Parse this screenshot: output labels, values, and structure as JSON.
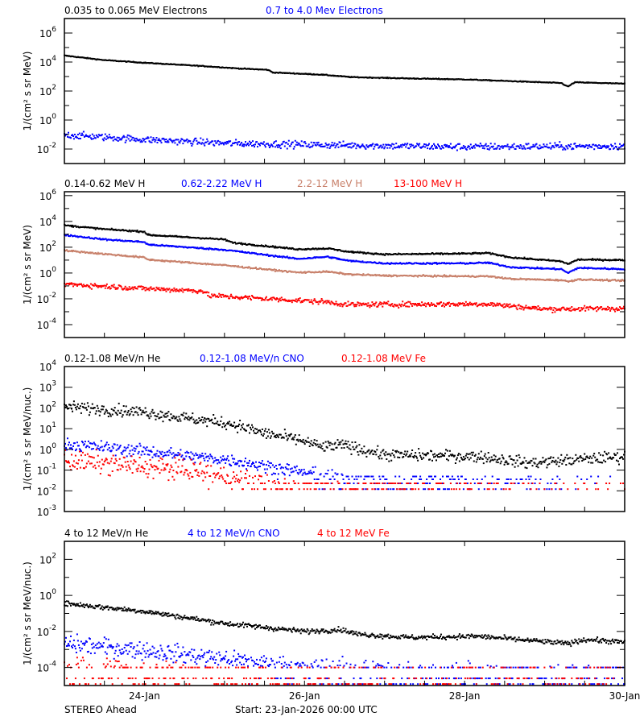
{
  "x_range": [
    "2026-01-23T00:00",
    "2026-01-30T00:00"
  ],
  "x_tick_labels": [
    {
      "date": "2026-01-24T00:00",
      "label": "24-Jan"
    },
    {
      "date": "2026-01-26T00:00",
      "label": "26-Jan"
    },
    {
      "date": "2026-01-28T00:00",
      "label": "28-Jan"
    },
    {
      "date": "2026-01-30T00:00",
      "label": "30-Jan"
    }
  ],
  "footer": {
    "spacecraft": "STEREO Ahead",
    "start": "Start: 23-Jan-2026 00:00 UTC"
  },
  "chart_data": [
    {
      "type": "scatter",
      "yscale": "log",
      "ylabel": "1/(cm² s sr MeV)",
      "ylim": [
        0.001,
        10000000.0
      ],
      "ytick_labels_exp": [
        -2,
        0,
        2,
        4,
        6
      ],
      "series": [
        {
          "name": "0.035 to 0.065 MeV Electrons",
          "color": "#000000",
          "scatter_dex": 0.015,
          "points": [
            [
              "2026-01-23T00:00",
              28000
            ],
            [
              "2026-01-23T12:00",
              13500
            ],
            [
              "2026-01-24T00:00",
              8900
            ],
            [
              "2026-01-24T19:00",
              5000
            ],
            [
              "2026-01-25T05:00",
              3500
            ],
            [
              "2026-01-25T13:00",
              2900
            ],
            [
              "2026-01-25T14:30",
              1900
            ],
            [
              "2026-01-26T05:00",
              1350
            ],
            [
              "2026-01-26T14:00",
              910
            ],
            [
              "2026-01-27T07:00",
              740
            ],
            [
              "2026-01-28T00:00",
              630
            ],
            [
              "2026-01-28T14:00",
              480
            ],
            [
              "2026-01-29T05:00",
              355
            ],
            [
              "2026-01-29T07:00",
              200
            ],
            [
              "2026-01-29T09:00",
              400
            ],
            [
              "2026-01-30T00:00",
              320
            ]
          ]
        },
        {
          "name": "0.7 to 4.0 Mev Electrons",
          "color": "#0000ff",
          "scatter_dex": 0.12,
          "points": [
            [
              "2026-01-23T00:00",
              0.095
            ],
            [
              "2026-01-24T00:00",
              0.045
            ],
            [
              "2026-01-25T00:00",
              0.025
            ],
            [
              "2026-01-26T00:00",
              0.02
            ],
            [
              "2026-01-28T00:00",
              0.014
            ],
            [
              "2026-01-30T00:00",
              0.016
            ]
          ]
        }
      ]
    },
    {
      "type": "scatter",
      "yscale": "log",
      "ylabel": "1/(cm² s sr MeV)",
      "ylim": [
        1e-05,
        2000000.0
      ],
      "ytick_labels_exp": [
        -4,
        -2,
        0,
        2,
        4,
        6
      ],
      "series": [
        {
          "name": "0.14-0.62 MeV H",
          "color": "#000000",
          "scatter_dex": 0.03,
          "points": [
            [
              "2026-01-23T00:00",
              5000
            ],
            [
              "2026-01-23T12:00",
              2500
            ],
            [
              "2026-01-24T00:00",
              1600
            ],
            [
              "2026-01-24T01:00",
              900
            ],
            [
              "2026-01-25T00:00",
              400
            ],
            [
              "2026-01-25T02:30",
              220
            ],
            [
              "2026-01-25T22:00",
              70
            ],
            [
              "2026-01-26T07:00",
              80
            ],
            [
              "2026-01-26T13:00",
              45
            ],
            [
              "2026-01-27T00:00",
              28
            ],
            [
              "2026-01-28T00:00",
              32
            ],
            [
              "2026-01-28T07:00",
              35
            ],
            [
              "2026-01-28T14:00",
              16
            ],
            [
              "2026-01-29T05:00",
              8
            ],
            [
              "2026-01-29T07:00",
              5
            ],
            [
              "2026-01-29T10:00",
              11
            ],
            [
              "2026-01-30T00:00",
              10
            ]
          ]
        },
        {
          "name": "0.62-2.22 MeV H",
          "color": "#0000ff",
          "scatter_dex": 0.03,
          "points": [
            [
              "2026-01-23T00:00",
              900
            ],
            [
              "2026-01-23T12:00",
              400
            ],
            [
              "2026-01-24T00:00",
              250
            ],
            [
              "2026-01-24T01:00",
              160
            ],
            [
              "2026-01-25T00:00",
              63
            ],
            [
              "2026-01-25T22:00",
              12.6
            ],
            [
              "2026-01-26T07:00",
              18
            ],
            [
              "2026-01-26T13:00",
              9
            ],
            [
              "2026-01-27T00:00",
              5.6
            ],
            [
              "2026-01-28T00:00",
              5.6
            ],
            [
              "2026-01-28T07:00",
              6.3
            ],
            [
              "2026-01-28T14:00",
              2.8
            ],
            [
              "2026-01-29T05:00",
              2
            ],
            [
              "2026-01-29T07:00",
              1
            ],
            [
              "2026-01-29T10:00",
              2.5
            ],
            [
              "2026-01-30T00:00",
              2
            ]
          ]
        },
        {
          "name": "2.2-12 MeV H",
          "color": "#c8806a",
          "scatter_dex": 0.03,
          "points": [
            [
              "2026-01-23T00:00",
              56
            ],
            [
              "2026-01-24T00:00",
              16
            ],
            [
              "2026-01-24T01:00",
              11
            ],
            [
              "2026-01-25T00:00",
              4
            ],
            [
              "2026-01-25T22:00",
              1.1
            ],
            [
              "2026-01-26T07:00",
              1.26
            ],
            [
              "2026-01-26T13:00",
              0.8
            ],
            [
              "2026-01-27T00:00",
              0.63
            ],
            [
              "2026-01-28T00:00",
              0.56
            ],
            [
              "2026-01-28T07:00",
              0.56
            ],
            [
              "2026-01-28T14:00",
              0.35
            ],
            [
              "2026-01-29T05:00",
              0.28
            ],
            [
              "2026-01-29T07:00",
              0.22
            ],
            [
              "2026-01-29T10:00",
              0.32
            ],
            [
              "2026-01-30T00:00",
              0.25
            ]
          ]
        },
        {
          "name": "13-100 MeV H",
          "color": "#ff0000",
          "scatter_dex": 0.1,
          "points": [
            [
              "2026-01-23T00:00",
              0.14
            ],
            [
              "2026-01-24T00:00",
              0.063
            ],
            [
              "2026-01-24T18:00",
              0.04
            ],
            [
              "2026-01-24T19:00",
              0.018
            ],
            [
              "2026-01-26T07:00",
              0.0056
            ],
            [
              "2026-01-26T13:00",
              0.0035
            ],
            [
              "2026-01-28T07:00",
              0.004
            ],
            [
              "2026-01-29T00:00",
              0.0016
            ],
            [
              "2026-01-30T00:00",
              0.0018
            ]
          ]
        }
      ]
    },
    {
      "type": "scatter",
      "yscale": "log",
      "ylabel": "1/(cm² s sr MeV/nuc.)",
      "ylim": [
        0.001,
        10000.0
      ],
      "ytick_labels_exp": [
        -3,
        -2,
        -1,
        0,
        1,
        2,
        3,
        4
      ],
      "series": [
        {
          "name": "0.12-1.08 MeV/n He",
          "color": "#000000",
          "scatter_dex": 0.14,
          "points": [
            [
              "2026-01-23T00:00",
              115
            ],
            [
              "2026-01-24T00:00",
              63
            ],
            [
              "2026-01-24T14:00",
              30
            ],
            [
              "2026-01-25T02:00",
              17
            ],
            [
              "2026-01-25T12:00",
              6
            ],
            [
              "2026-01-26T00:00",
              2.5
            ],
            [
              "2026-01-26T05:00",
              1.3
            ],
            [
              "2026-01-26T12:00",
              1.6
            ],
            [
              "2026-01-27T00:00",
              0.54
            ],
            [
              "2026-01-28T05:00",
              0.45
            ],
            [
              "2026-01-28T19:00",
              0.22
            ],
            [
              "2026-01-29T11:00",
              0.33
            ],
            [
              "2026-01-30T00:00",
              0.45
            ]
          ]
        },
        {
          "name": "0.12-1.08 MeV/n CNO",
          "color": "#0000ff",
          "scatter_dex": 0.15,
          "floors": [
            0.049,
            0.036,
            0.023,
            0.012
          ],
          "points": [
            [
              "2026-01-23T00:00",
              1.8
            ],
            [
              "2026-01-24T00:00",
              0.83
            ],
            [
              "2026-01-24T14:00",
              0.46
            ],
            [
              "2026-01-25T02:00",
              0.3
            ],
            [
              "2026-01-25T14:00",
              0.14
            ],
            [
              "2026-01-26T00:00",
              0.076
            ],
            [
              "2026-01-27T00:00",
              0.016
            ],
            [
              "2026-01-30T00:00",
              0.003
            ]
          ]
        },
        {
          "name": "0.12-1.08 MeV Fe",
          "color": "#ff0000",
          "scatter_dex": 0.25,
          "floors": [
            0.023,
            0.012
          ],
          "points": [
            [
              "2026-01-23T00:00",
              0.3
            ],
            [
              "2026-01-24T00:00",
              0.14
            ],
            [
              "2026-01-24T14:00",
              0.1
            ],
            [
              "2026-01-25T05:00",
              0.03
            ],
            [
              "2026-01-26T00:00",
              0.01
            ],
            [
              "2026-01-30T00:00",
              0.003
            ]
          ]
        }
      ]
    },
    {
      "type": "scatter",
      "yscale": "log",
      "ylabel": "1/(cm² s sr MeV/nuc.)",
      "ylim": [
        1e-05,
        1000.0
      ],
      "ytick_labels_exp": [
        -4,
        -2,
        0,
        2
      ],
      "series": [
        {
          "name": "4 to 12 MeV/n He",
          "color": "#000000",
          "scatter_dex": 0.07,
          "points": [
            [
              "2026-01-23T00:00",
              0.36
            ],
            [
              "2026-01-24T00:00",
              0.13
            ],
            [
              "2026-01-25T00:00",
              0.028
            ],
            [
              "2026-01-26T00:00",
              0.01
            ],
            [
              "2026-01-26T11:00",
              0.0126
            ],
            [
              "2026-01-26T16:00",
              0.007
            ],
            [
              "2026-01-27T08:00",
              0.0046
            ],
            [
              "2026-01-28T04:00",
              0.0054
            ],
            [
              "2026-01-28T21:00",
              0.003
            ],
            [
              "2026-01-29T07:00",
              0.0021
            ],
            [
              "2026-01-29T12:00",
              0.0036
            ],
            [
              "2026-01-30T00:00",
              0.0025
            ]
          ]
        },
        {
          "name": "4 to 12 MeV/n CNO",
          "color": "#0000ff",
          "scatter_dex": 0.25,
          "floors": [
            0.0001,
            2.5e-05,
            1.2e-05
          ],
          "points": [
            [
              "2026-01-23T00:00",
              0.0021
            ],
            [
              "2026-01-24T00:00",
              0.0009
            ],
            [
              "2026-01-24T14:00",
              0.00047
            ],
            [
              "2026-01-25T05:00",
              0.00023
            ],
            [
              "2026-01-26T00:00",
              0.0001
            ],
            [
              "2026-01-28T00:00",
              5e-05
            ],
            [
              "2026-01-30T00:00",
              4e-05
            ]
          ]
        },
        {
          "name": "4 to 12 MeV Fe",
          "color": "#ff0000",
          "scatter_dex": 0.3,
          "floors": [
            0.0001,
            2.5e-05,
            1.2e-05
          ],
          "points": [
            [
              "2026-01-23T00:00",
              0.0001
            ],
            [
              "2026-01-25T00:00",
              2.5e-05
            ],
            [
              "2026-01-26T00:00",
              1e-05
            ],
            [
              "2026-01-30T00:00",
              6e-06
            ]
          ]
        }
      ]
    }
  ]
}
